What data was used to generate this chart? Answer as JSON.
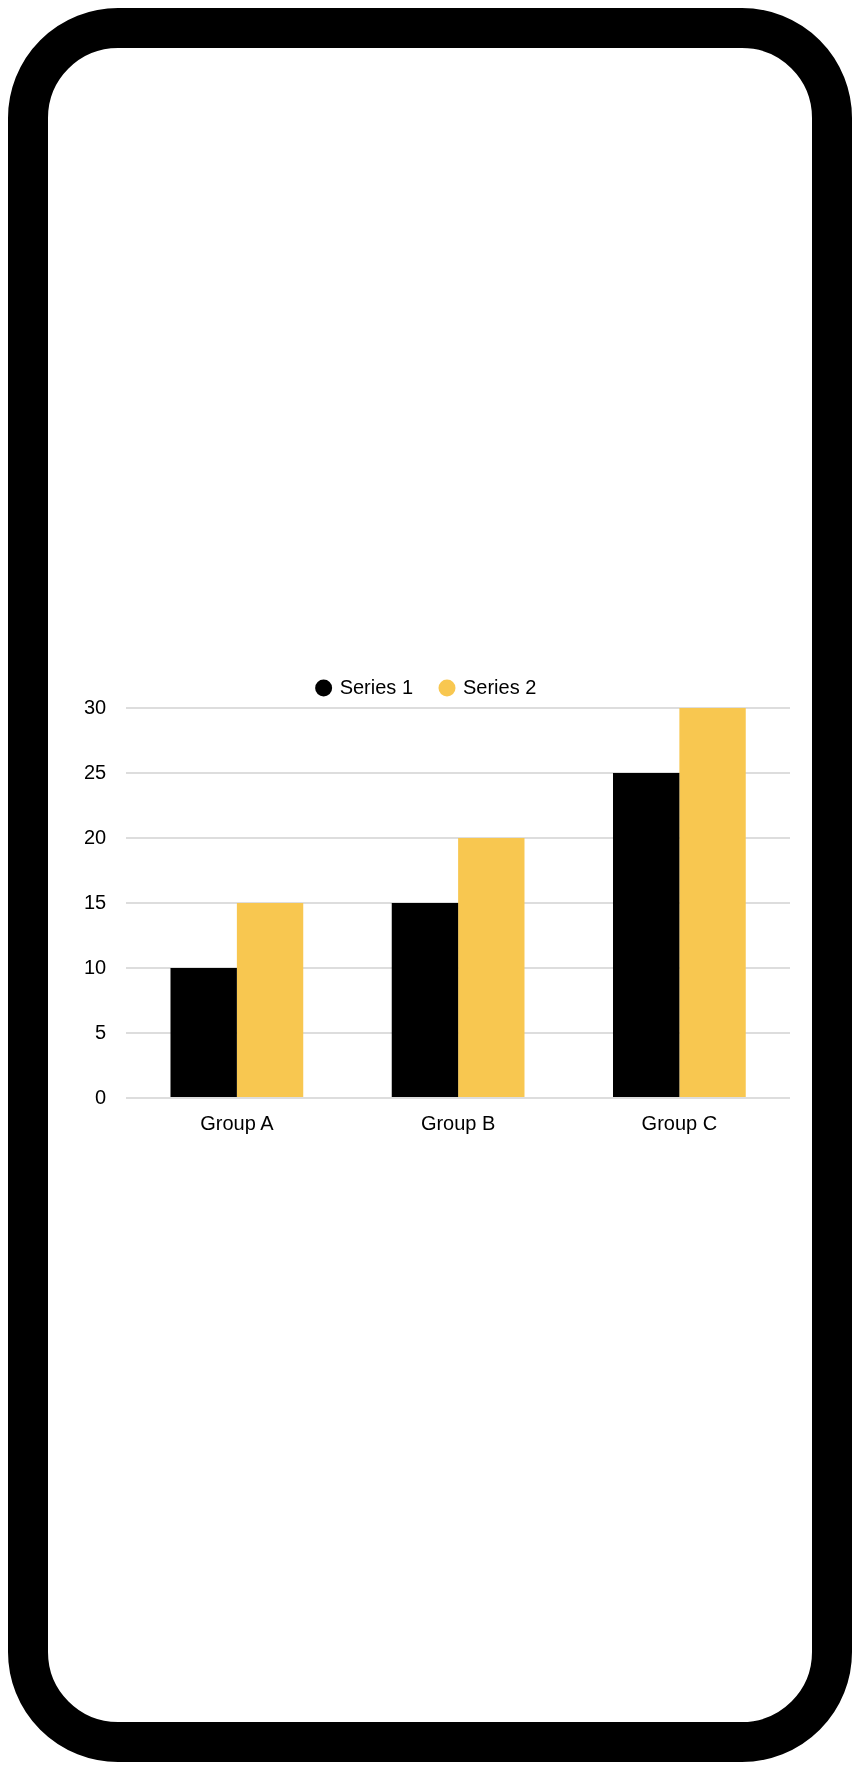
{
  "chart_data": {
    "type": "bar",
    "categories": [
      "Group A",
      "Group B",
      "Group C"
    ],
    "series": [
      {
        "name": "Series 1",
        "color": "#000000",
        "values": [
          10,
          15,
          25
        ]
      },
      {
        "name": "Series 2",
        "color": "#f8c750",
        "values": [
          15,
          20,
          30
        ]
      }
    ],
    "ylim": [
      0,
      30
    ],
    "yticks": [
      0,
      5,
      10,
      15,
      20,
      25,
      30
    ],
    "grid": "y",
    "legend": "top"
  }
}
